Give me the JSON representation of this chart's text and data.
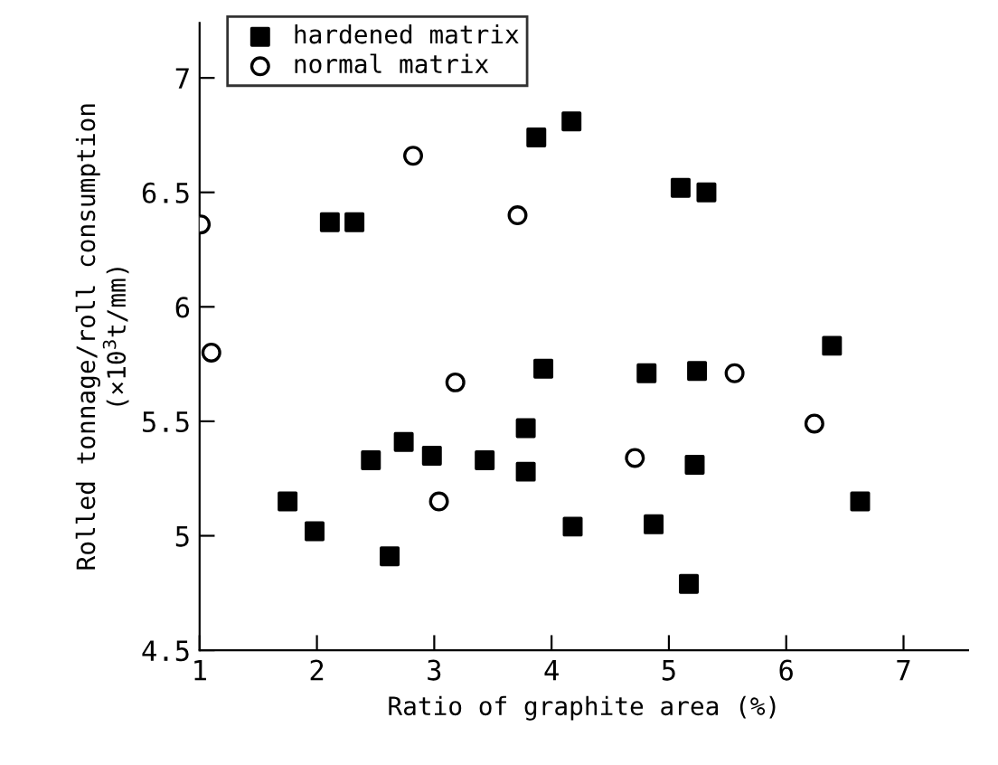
{
  "chart_data": {
    "type": "scatter",
    "xlabel": "Ratio of graphite area (%)",
    "ylabel": "Rolled tonnage/roll consumption\n(×10$^{3}$t/mm)",
    "xlim": [
      1,
      7.55
    ],
    "ylim": [
      4.5,
      7.24
    ],
    "xticks": [
      1,
      2,
      3,
      4,
      5,
      6,
      7
    ],
    "yticks": [
      {
        "value": 4.5,
        "label": "4.5"
      },
      5,
      {
        "value": 5.5,
        "label": "5.5"
      },
      6,
      {
        "value": 6.5,
        "label": "6.5"
      },
      7
    ],
    "grid": false,
    "legend": "top left",
    "series": [
      {
        "name": "hardened matrix",
        "color": "#000000",
        "marker": "square",
        "x": [
          1.75,
          1.98,
          2.11,
          2.32,
          2.46,
          2.74,
          2.62,
          2.98,
          3.43,
          3.78,
          3.78,
          3.93,
          4.18,
          3.87,
          4.17,
          4.81,
          4.87,
          5.24,
          5.22,
          5.17,
          5.1,
          5.32,
          6.39,
          6.63
        ],
        "values": [
          5.15,
          5.02,
          6.37,
          6.37,
          5.33,
          5.41,
          4.91,
          5.35,
          5.33,
          5.28,
          5.47,
          5.73,
          5.04,
          6.74,
          6.81,
          5.71,
          5.05,
          5.72,
          5.31,
          4.79,
          6.52,
          6.5,
          5.83,
          5.15
        ]
      },
      {
        "name": "normal matrix",
        "color": "#000000",
        "marker": "circle",
        "x": [
          1.01,
          1.1,
          2.82,
          3.71,
          3.18,
          3.04,
          4.71,
          5.56,
          6.24
        ],
        "values": [
          6.36,
          5.8,
          6.66,
          6.4,
          5.67,
          5.15,
          5.34,
          5.71,
          5.49
        ]
      }
    ]
  }
}
